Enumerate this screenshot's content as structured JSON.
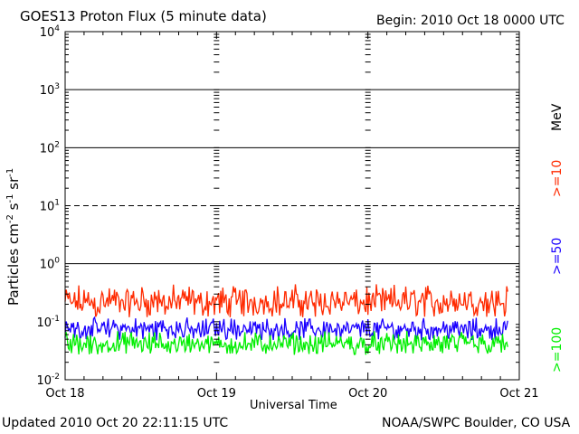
{
  "header": {
    "title": "GOES13 Proton Flux (5 minute data)",
    "begin": "Begin: 2010 Oct 18 0000 UTC"
  },
  "footer": {
    "updated": "Updated 2010 Oct 20 22:11:15 UTC",
    "credit": "NOAA/SWPC Boulder, CO USA"
  },
  "colors": {
    "ge10": "#ff2a00",
    "ge50": "#1a00ff",
    "ge100": "#00ee00",
    "axis": "#000000"
  },
  "chart_data": {
    "type": "line",
    "title": "GOES13 Proton Flux (5 minute data)",
    "xlabel": "Universal Time",
    "ylabel": "Particles cm^-2 s^-1 sr^-1",
    "yscale": "log",
    "ylim": [
      0.01,
      10000
    ],
    "y_ticks": [
      {
        "base": "10",
        "exp": "-2"
      },
      {
        "base": "10",
        "exp": "-1"
      },
      {
        "base": "10",
        "exp": "0"
      },
      {
        "base": "10",
        "exp": "1"
      },
      {
        "base": "10",
        "exp": "2"
      },
      {
        "base": "10",
        "exp": "3"
      },
      {
        "base": "10",
        "exp": "4"
      }
    ],
    "x_ticks": [
      "Oct 18",
      "Oct 19",
      "Oct 20",
      "Oct 21"
    ],
    "xlim_days": [
      0,
      3
    ],
    "unit_label": "MeV",
    "grid": "solid lines at 10^3, 10^2, 10^0; dashed line at 10^1",
    "series": [
      {
        "name": ">=10",
        "color": "#ff2a00",
        "typical": 0.18,
        "min": 0.1,
        "max": 0.45,
        "end_day": 2.93
      },
      {
        "name": ">=50",
        "color": "#1a00ff",
        "typical": 0.065,
        "min": 0.042,
        "max": 0.12,
        "end_day": 2.93
      },
      {
        "name": ">=100",
        "color": "#00ee00",
        "typical": 0.035,
        "min": 0.024,
        "max": 0.07,
        "end_day": 2.93
      }
    ]
  }
}
